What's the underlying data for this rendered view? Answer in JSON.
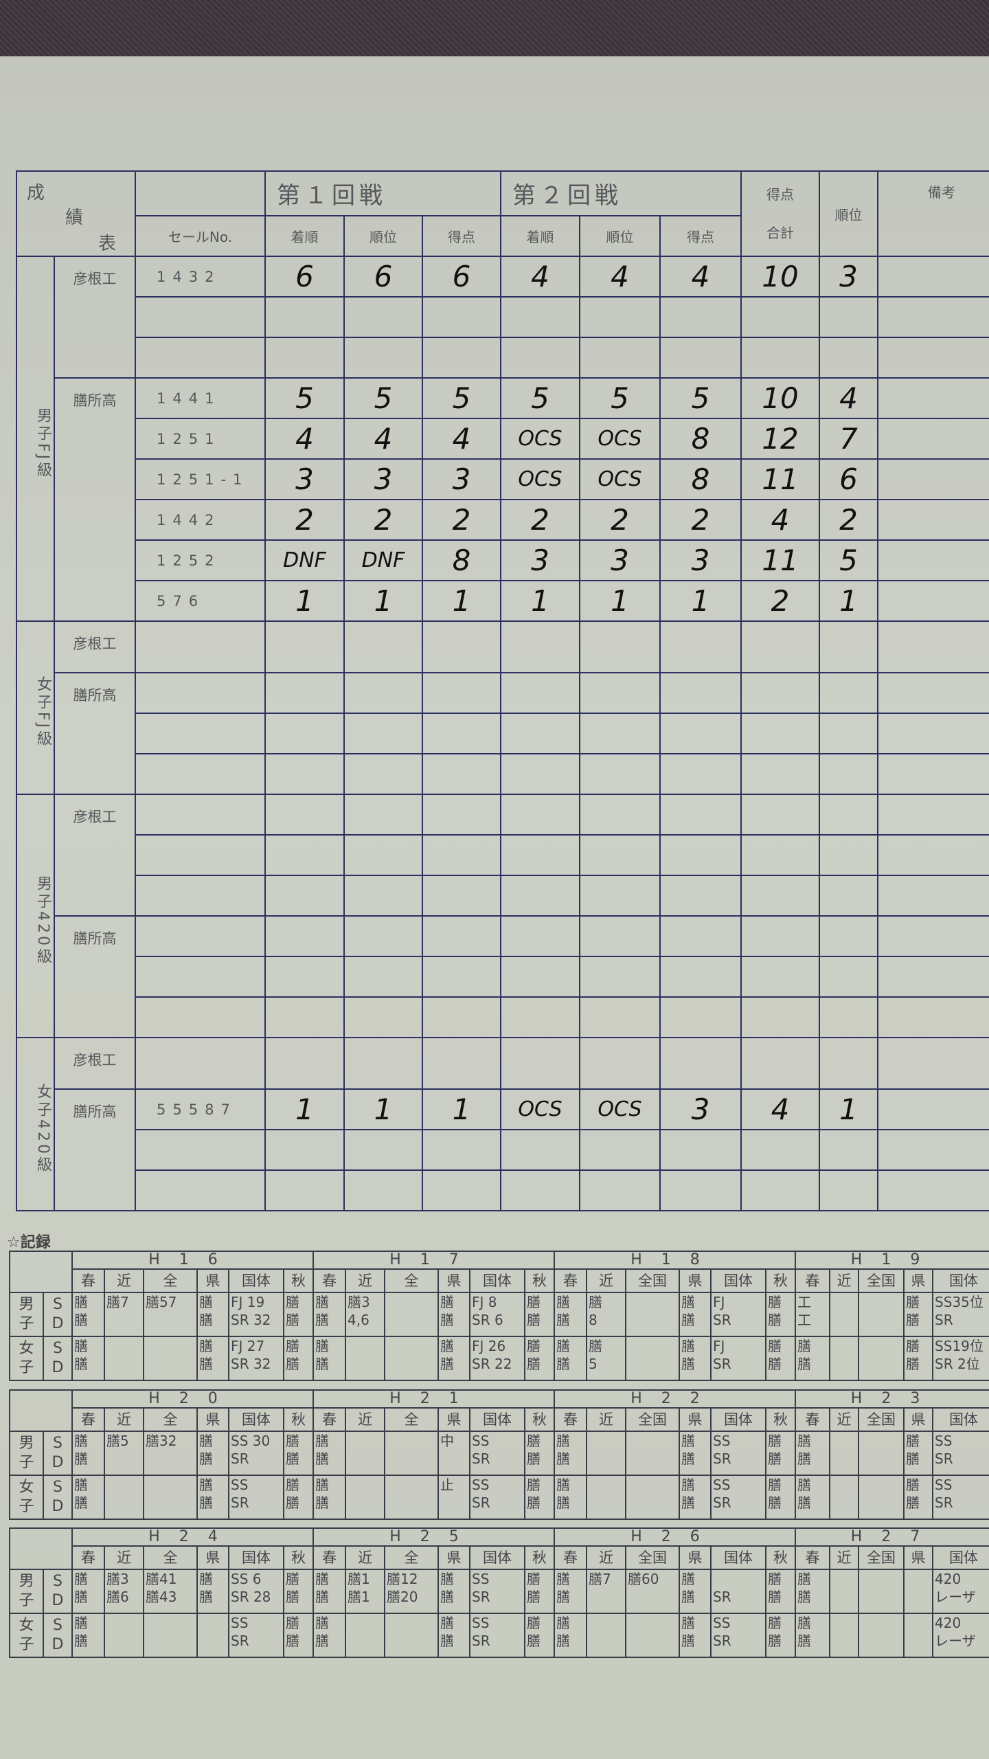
{
  "colors": {
    "ink": "#2b3060",
    "paper": "#c8cbc0",
    "handwriting": "#111111"
  },
  "main_table": {
    "title": [
      "成",
      "績",
      "表"
    ],
    "sail_no_header": "セールNo.",
    "round1": "第１回戦",
    "round2": "第２回戦",
    "sub_headers": [
      "着順",
      "順位",
      "得点",
      "着順",
      "順位",
      "得点"
    ],
    "total_header": "得点\n合計",
    "total_header_top": "得点",
    "total_header_bottom": "合計",
    "rank_header": "順位",
    "remarks_header": "備考",
    "groups": [
      {
        "label": "男子FJ級",
        "schools": [
          {
            "name": "彦根工",
            "rows": [
              [
                "1432",
                "6",
                "6",
                "6",
                "4",
                "4",
                "4",
                "10",
                "3",
                ""
              ],
              [
                "",
                "",
                "",
                "",
                "",
                "",
                "",
                "",
                "",
                ""
              ],
              [
                "",
                "",
                "",
                "",
                "",
                "",
                "",
                "",
                "",
                ""
              ]
            ]
          },
          {
            "name": "膳所高",
            "rows": [
              [
                "1441",
                "5",
                "5",
                "5",
                "5",
                "5",
                "5",
                "10",
                "4",
                ""
              ],
              [
                "1251",
                "4",
                "4",
                "4",
                "OCS",
                "OCS",
                "8",
                "12",
                "7",
                ""
              ],
              [
                "1251-1",
                "3",
                "3",
                "3",
                "OCS",
                "OCS",
                "8",
                "11",
                "6",
                ""
              ],
              [
                "1442",
                "2",
                "2",
                "2",
                "2",
                "2",
                "2",
                "4",
                "2",
                ""
              ],
              [
                "1252",
                "DNF",
                "DNF",
                "8",
                "3",
                "3",
                "3",
                "11",
                "5",
                ""
              ],
              [
                "576",
                "1",
                "1",
                "1",
                "1",
                "1",
                "1",
                "2",
                "1",
                ""
              ]
            ]
          }
        ]
      },
      {
        "label": "女子FJ級",
        "schools": [
          {
            "name": "彦根工",
            "rows": [
              [
                "",
                "",
                "",
                "",
                "",
                "",
                "",
                "",
                "",
                ""
              ]
            ]
          },
          {
            "name": "膳所高",
            "rows": [
              [
                "",
                "",
                "",
                "",
                "",
                "",
                "",
                "",
                "",
                ""
              ],
              [
                "",
                "",
                "",
                "",
                "",
                "",
                "",
                "",
                "",
                ""
              ],
              [
                "",
                "",
                "",
                "",
                "",
                "",
                "",
                "",
                "",
                ""
              ]
            ]
          }
        ]
      },
      {
        "label": "男子420級",
        "schools": [
          {
            "name": "彦根工",
            "rows": [
              [
                "",
                "",
                "",
                "",
                "",
                "",
                "",
                "",
                "",
                ""
              ],
              [
                "",
                "",
                "",
                "",
                "",
                "",
                "",
                "",
                "",
                ""
              ],
              [
                "",
                "",
                "",
                "",
                "",
                "",
                "",
                "",
                "",
                ""
              ]
            ]
          },
          {
            "name": "膳所高",
            "rows": [
              [
                "",
                "",
                "",
                "",
                "",
                "",
                "",
                "",
                "",
                ""
              ],
              [
                "",
                "",
                "",
                "",
                "",
                "",
                "",
                "",
                "",
                ""
              ],
              [
                "",
                "",
                "",
                "",
                "",
                "",
                "",
                "",
                "",
                ""
              ]
            ]
          }
        ]
      },
      {
        "label": "女子420級",
        "schools": [
          {
            "name": "彦根工",
            "rows": [
              [
                "",
                "",
                "",
                "",
                "",
                "",
                "",
                "",
                "",
                ""
              ]
            ]
          },
          {
            "name": "膳所高",
            "rows": [
              [
                "55587",
                "1",
                "1",
                "1",
                "OCS",
                "OCS",
                "3",
                "4",
                "1",
                ""
              ],
              [
                "",
                "",
                "",
                "",
                "",
                "",
                "",
                "",
                "",
                ""
              ],
              [
                "",
                "",
                "",
                "",
                "",
                "",
                "",
                "",
                "",
                ""
              ]
            ]
          }
        ]
      }
    ]
  },
  "records": {
    "title": "☆記録",
    "row_labels": [
      {
        "gender": "男\n子",
        "type": "S\nD"
      },
      {
        "gender": "女\n子",
        "type": "S\nD"
      }
    ],
    "blocks": [
      {
        "years": [
          {
            "label": "H16",
            "cats": [
              "春",
              "近",
              "全",
              "県",
              "国体",
              "秋"
            ],
            "men": [
              "膳\n膳",
              "膳7",
              "膳57",
              "膳\n膳",
              "FJ 19\nSR 32",
              "膳\n膳"
            ],
            "women": [
              "膳\n膳",
              "",
              "",
              "膳\n膳",
              "FJ 27\nSR 32",
              "膳\n膳"
            ]
          },
          {
            "label": "H17",
            "cats": [
              "春",
              "近",
              "全",
              "県",
              "国体",
              "秋"
            ],
            "men": [
              "膳\n膳",
              "膳3\n4,6",
              "",
              "膳\n膳",
              "FJ 8\nSR 6",
              "膳\n膳"
            ],
            "women": [
              "膳\n膳",
              "",
              "",
              "膳\n膳",
              "FJ 26\nSR 22",
              "膳\n膳"
            ]
          },
          {
            "label": "H18",
            "cats": [
              "春",
              "近",
              "全国",
              "県",
              "国体",
              "秋"
            ],
            "men": [
              "膳\n膳",
              "膳\n  8",
              "",
              "膳\n膳",
              "FJ\nSR",
              "膳\n膳"
            ],
            "women": [
              "膳\n膳",
              "膳\n5",
              "",
              "膳\n膳",
              "FJ\nSR",
              "膳\n膳"
            ]
          },
          {
            "label": "H19",
            "cats": [
              "春",
              "近",
              "全国",
              "県",
              "国体"
            ],
            "men": [
              "工\n工",
              "",
              "",
              "膳\n膳",
              "SS35位\nSR"
            ],
            "women": [
              "膳\n膳",
              "",
              "",
              "膳\n膳",
              "SS19位\nSR 2位"
            ]
          }
        ]
      },
      {
        "years": [
          {
            "label": "H20",
            "cats": [
              "春",
              "近",
              "全",
              "県",
              "国体",
              "秋"
            ],
            "men": [
              "膳\n膳",
              "膳5",
              "膳32",
              "膳\n膳",
              "SS 30\nSR",
              "膳\n膳"
            ],
            "women": [
              "膳\n膳",
              "",
              "",
              "膳\n膳",
              "SS\nSR",
              "膳\n膳"
            ]
          },
          {
            "label": "H21",
            "cats": [
              "春",
              "近",
              "全",
              "県",
              "国体",
              "秋"
            ],
            "men": [
              "膳\n膳",
              "",
              "",
              "中",
              "SS\nSR",
              "膳\n膳"
            ],
            "women": [
              "膳\n膳",
              "",
              "",
              "止",
              "SS\nSR",
              "膳\n膳"
            ]
          },
          {
            "label": "H22",
            "cats": [
              "春",
              "近",
              "全国",
              "県",
              "国体",
              "秋"
            ],
            "men": [
              "膳\n膳",
              "",
              "",
              "膳\n膳",
              "SS\nSR",
              "膳\n膳"
            ],
            "women": [
              "膳\n膳",
              "",
              "",
              "膳\n膳",
              "SS\nSR",
              "膳\n膳"
            ]
          },
          {
            "label": "H23",
            "cats": [
              "春",
              "近",
              "全国",
              "県",
              "国体"
            ],
            "men": [
              "膳\n膳",
              "",
              "",
              "膳\n膳",
              "SS\nSR"
            ],
            "women": [
              "膳\n膳",
              "",
              "",
              "膳\n膳",
              "SS\nSR"
            ]
          }
        ]
      },
      {
        "years": [
          {
            "label": "H24",
            "cats": [
              "春",
              "近",
              "全",
              "県",
              "国体",
              "秋"
            ],
            "men": [
              "膳\n膳",
              "膳3\n膳6",
              "膳41\n膳43",
              "膳\n膳",
              "SS 6\nSR 28",
              "膳\n膳"
            ],
            "women": [
              "膳\n膳",
              "",
              "",
              "",
              "SS\nSR",
              "膳\n膳"
            ]
          },
          {
            "label": "H25",
            "cats": [
              "春",
              "近",
              "全",
              "県",
              "国体",
              "秋"
            ],
            "men": [
              "膳\n膳",
              "膳1\n膳1",
              "膳12\n膳20",
              "膳\n膳",
              "SS\nSR",
              "膳\n膳"
            ],
            "women": [
              "膳\n膳",
              "",
              "",
              "膳\n膳",
              "SS\nSR",
              "膳\n膳"
            ]
          },
          {
            "label": "H26",
            "cats": [
              "春",
              "近",
              "全国",
              "県",
              "国体",
              "秋"
            ],
            "men": [
              "膳\n膳",
              "膳7",
              "膳60",
              "膳\n膳",
              "\nSR",
              "膳\n膳"
            ],
            "women": [
              "膳\n膳",
              "",
              "",
              "膳\n膳",
              "SS\nSR",
              "膳\n膳"
            ]
          },
          {
            "label": "H27",
            "cats": [
              "春",
              "近",
              "全国",
              "県",
              "国体"
            ],
            "men": [
              "膳\n膳",
              "",
              "",
              "",
              "420\nレーザ"
            ],
            "women": [
              "膳\n膳",
              "",
              "",
              "",
              "420\nレーザ"
            ]
          }
        ]
      }
    ]
  }
}
